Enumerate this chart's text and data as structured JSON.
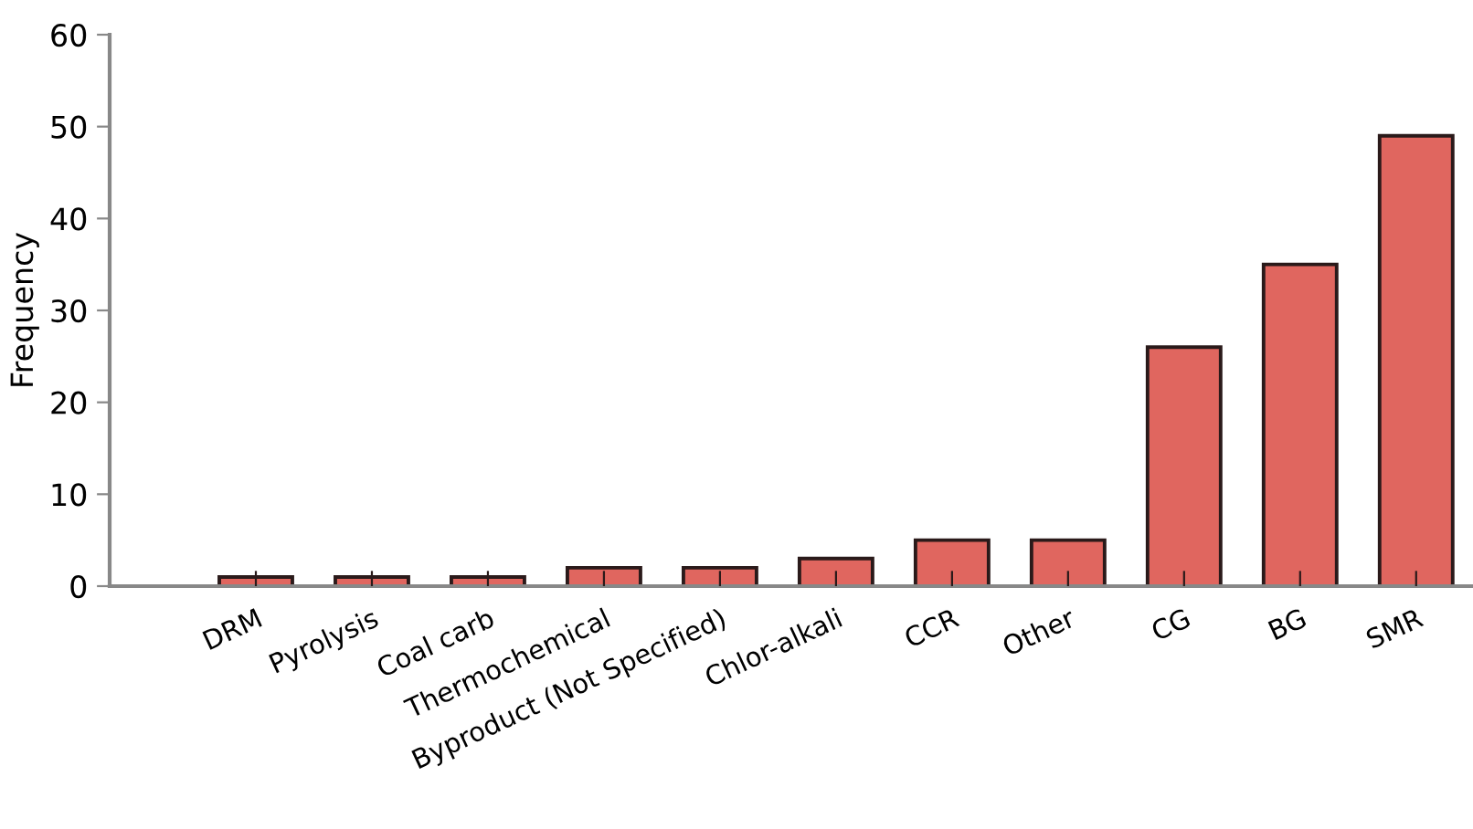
{
  "chart_data": {
    "type": "bar",
    "ylabel": "Frequency",
    "categories": [
      "DRM",
      "Pyrolysis",
      "Coal carb",
      "Thermochemical",
      "Byproduct (Not Specified)",
      "Chlor-alkali",
      "CCR",
      "Other",
      "CG",
      "BG",
      "SMR"
    ],
    "values": [
      1,
      1,
      1,
      2,
      2,
      3,
      5,
      5,
      26,
      35,
      49
    ],
    "color": "#e0665f",
    "ylim": [
      0,
      60
    ],
    "yticks": [
      0,
      10,
      20,
      30,
      40,
      50,
      60
    ],
    "grid": false
  }
}
